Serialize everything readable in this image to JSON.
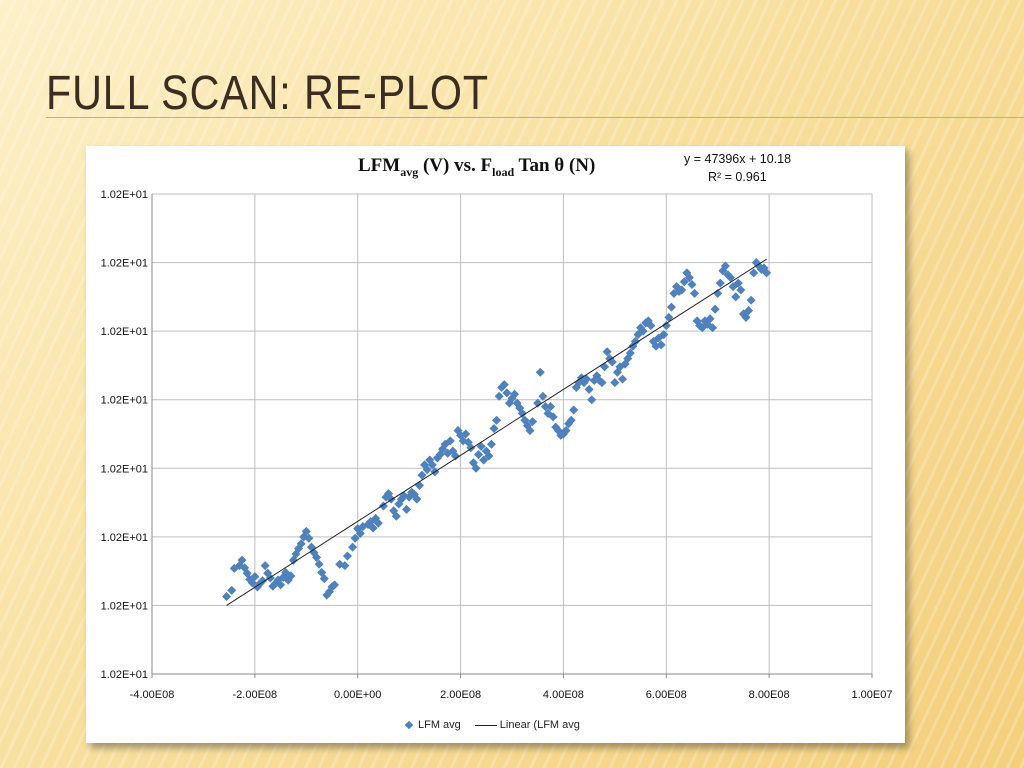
{
  "slide": {
    "title": "FULL SCAN: RE-PLOT"
  },
  "colors": {
    "marker": "#4f81bd",
    "trendline": "#222222",
    "grid": "#bfbfbf"
  },
  "chart_data": {
    "type": "scatter",
    "title": "LFM (V) vs. F Tan θ (N)",
    "title_parts": {
      "a": "LFM",
      "a_sub": "avg",
      "b": " (V) vs. F",
      "b_sub": "load",
      "c": " Tan θ (N)"
    },
    "trendline": {
      "name": "Linear (LFM avg",
      "equation": "y = 47396x + 10.18",
      "r_squared": "R² = 0.961",
      "type": "linear"
    },
    "legend": {
      "placement": "bottom",
      "series_label": "LFM avg",
      "trend_label": "Linear (LFM avg"
    },
    "grid": true,
    "xlim": [
      -4.0,
      10.0
    ],
    "ylim": [
      0,
      7
    ],
    "x_ticks": [
      {
        "value": -4,
        "label": "-4.00E08"
      },
      {
        "value": -2,
        "label": "-2.00E08"
      },
      {
        "value": 0,
        "label": "0.00E+00"
      },
      {
        "value": 2,
        "label": "2.00E08"
      },
      {
        "value": 4,
        "label": "4.00E08"
      },
      {
        "value": 6,
        "label": "6.00E08"
      },
      {
        "value": 8,
        "label": "8.00E08"
      },
      {
        "value": 10,
        "label": "1.00E07"
      }
    ],
    "y_ticks": [
      {
        "value": 0,
        "label": "1.02E+01"
      },
      {
        "value": 1,
        "label": "1.02E+01"
      },
      {
        "value": 2,
        "label": "1.02E+01"
      },
      {
        "value": 3,
        "label": "1.02E+01"
      },
      {
        "value": 4,
        "label": "1.02E+01"
      },
      {
        "value": 5,
        "label": "1.02E+01"
      },
      {
        "value": 6,
        "label": "1.02E+01"
      },
      {
        "value": 7,
        "label": "1.02E+01"
      }
    ],
    "trend_range": {
      "x": [
        -2.55,
        7.95
      ],
      "y": [
        1.0,
        6.05
      ]
    },
    "series": [
      {
        "name": "LFM avg",
        "points": [
          [
            -2.55,
            1.13
          ],
          [
            -2.45,
            1.22
          ],
          [
            -2.4,
            1.54
          ],
          [
            -2.3,
            1.58
          ],
          [
            -2.25,
            1.66
          ],
          [
            -2.2,
            1.55
          ],
          [
            -2.15,
            1.47
          ],
          [
            -2.1,
            1.38
          ],
          [
            -2.05,
            1.33
          ],
          [
            -2.0,
            1.42
          ],
          [
            -1.95,
            1.27
          ],
          [
            -1.9,
            1.32
          ],
          [
            -1.85,
            1.36
          ],
          [
            -1.8,
            1.58
          ],
          [
            -1.75,
            1.47
          ],
          [
            -1.7,
            1.4
          ],
          [
            -1.65,
            1.28
          ],
          [
            -1.6,
            1.32
          ],
          [
            -1.55,
            1.37
          ],
          [
            -1.5,
            1.3
          ],
          [
            -1.45,
            1.41
          ],
          [
            -1.4,
            1.48
          ],
          [
            -1.35,
            1.37
          ],
          [
            -1.3,
            1.43
          ],
          [
            -1.25,
            1.66
          ],
          [
            -1.2,
            1.75
          ],
          [
            -1.15,
            1.83
          ],
          [
            -1.1,
            1.9
          ],
          [
            -1.05,
            2.0
          ],
          [
            -1.0,
            2.08
          ],
          [
            -0.95,
            1.98
          ],
          [
            -0.9,
            1.85
          ],
          [
            -0.85,
            1.77
          ],
          [
            -0.8,
            1.7
          ],
          [
            -0.75,
            1.6
          ],
          [
            -0.7,
            1.48
          ],
          [
            -0.65,
            1.39
          ],
          [
            -0.6,
            1.15
          ],
          [
            -0.55,
            1.2
          ],
          [
            -0.5,
            1.27
          ],
          [
            -0.45,
            1.3
          ],
          [
            -0.35,
            1.6
          ],
          [
            -0.25,
            1.58
          ],
          [
            -0.2,
            1.72
          ],
          [
            -0.1,
            1.85
          ],
          [
            -0.05,
            1.98
          ],
          [
            0.0,
            2.12
          ],
          [
            0.05,
            2.05
          ],
          [
            0.1,
            2.15
          ],
          [
            0.2,
            2.18
          ],
          [
            0.25,
            2.22
          ],
          [
            0.3,
            2.13
          ],
          [
            0.35,
            2.27
          ],
          [
            0.4,
            2.2
          ],
          [
            0.5,
            2.45
          ],
          [
            0.55,
            2.58
          ],
          [
            0.6,
            2.63
          ],
          [
            0.65,
            2.55
          ],
          [
            0.7,
            2.38
          ],
          [
            0.75,
            2.3
          ],
          [
            0.8,
            2.48
          ],
          [
            0.85,
            2.55
          ],
          [
            0.9,
            2.6
          ],
          [
            0.95,
            2.4
          ],
          [
            1.0,
            2.58
          ],
          [
            1.05,
            2.65
          ],
          [
            1.1,
            2.62
          ],
          [
            1.15,
            2.55
          ],
          [
            1.2,
            2.75
          ],
          [
            1.25,
            2.9
          ],
          [
            1.3,
            3.05
          ],
          [
            1.35,
            2.98
          ],
          [
            1.4,
            3.12
          ],
          [
            1.45,
            3.05
          ],
          [
            1.5,
            2.95
          ],
          [
            1.55,
            3.15
          ],
          [
            1.6,
            3.2
          ],
          [
            1.65,
            3.28
          ],
          [
            1.7,
            3.35
          ],
          [
            1.75,
            3.22
          ],
          [
            1.8,
            3.4
          ],
          [
            1.85,
            3.25
          ],
          [
            1.9,
            3.18
          ],
          [
            1.95,
            3.55
          ],
          [
            2.0,
            3.48
          ],
          [
            2.05,
            3.4
          ],
          [
            2.1,
            3.5
          ],
          [
            2.15,
            3.38
          ],
          [
            2.2,
            3.3
          ],
          [
            2.25,
            3.08
          ],
          [
            2.3,
            3.0
          ],
          [
            2.35,
            3.2
          ],
          [
            2.4,
            3.32
          ],
          [
            2.45,
            3.12
          ],
          [
            2.5,
            3.25
          ],
          [
            2.55,
            3.18
          ],
          [
            2.6,
            3.35
          ],
          [
            2.65,
            3.58
          ],
          [
            2.7,
            3.7
          ],
          [
            2.75,
            4.05
          ],
          [
            2.8,
            4.18
          ],
          [
            2.85,
            4.22
          ],
          [
            2.9,
            4.1
          ],
          [
            2.95,
            3.95
          ],
          [
            3.0,
            4.02
          ],
          [
            3.05,
            4.08
          ],
          [
            3.1,
            3.95
          ],
          [
            3.15,
            3.88
          ],
          [
            3.2,
            3.8
          ],
          [
            3.25,
            3.7
          ],
          [
            3.3,
            3.62
          ],
          [
            3.35,
            3.55
          ],
          [
            3.4,
            3.68
          ],
          [
            3.5,
            3.95
          ],
          [
            3.55,
            4.4
          ],
          [
            3.6,
            4.05
          ],
          [
            3.65,
            3.9
          ],
          [
            3.7,
            3.8
          ],
          [
            3.75,
            3.9
          ],
          [
            3.8,
            3.75
          ],
          [
            3.85,
            3.6
          ],
          [
            3.9,
            3.55
          ],
          [
            3.95,
            3.48
          ],
          [
            4.0,
            3.5
          ],
          [
            4.05,
            3.55
          ],
          [
            4.1,
            3.65
          ],
          [
            4.15,
            3.7
          ],
          [
            4.2,
            3.85
          ],
          [
            4.25,
            4.18
          ],
          [
            4.3,
            4.25
          ],
          [
            4.35,
            4.32
          ],
          [
            4.4,
            4.25
          ],
          [
            4.45,
            4.3
          ],
          [
            4.5,
            4.15
          ],
          [
            4.55,
            4.0
          ],
          [
            4.6,
            4.28
          ],
          [
            4.65,
            4.35
          ],
          [
            4.7,
            4.28
          ],
          [
            4.75,
            4.25
          ],
          [
            4.8,
            4.48
          ],
          [
            4.85,
            4.7
          ],
          [
            4.9,
            4.6
          ],
          [
            4.95,
            4.55
          ],
          [
            5.0,
            4.25
          ],
          [
            5.05,
            4.4
          ],
          [
            5.1,
            4.48
          ],
          [
            5.15,
            4.3
          ],
          [
            5.2,
            4.52
          ],
          [
            5.25,
            4.6
          ],
          [
            5.3,
            4.68
          ],
          [
            5.35,
            4.78
          ],
          [
            5.4,
            4.85
          ],
          [
            5.45,
            4.95
          ],
          [
            5.5,
            5.05
          ],
          [
            5.55,
            5.0
          ],
          [
            5.6,
            5.12
          ],
          [
            5.65,
            5.15
          ],
          [
            5.7,
            5.08
          ],
          [
            5.75,
            4.85
          ],
          [
            5.8,
            4.78
          ],
          [
            5.85,
            4.9
          ],
          [
            5.9,
            4.8
          ],
          [
            5.95,
            4.95
          ],
          [
            6.0,
            5.08
          ],
          [
            6.05,
            5.2
          ],
          [
            6.1,
            5.35
          ],
          [
            6.15,
            5.55
          ],
          [
            6.2,
            5.65
          ],
          [
            6.25,
            5.58
          ],
          [
            6.3,
            5.6
          ],
          [
            6.35,
            5.72
          ],
          [
            6.4,
            5.85
          ],
          [
            6.45,
            5.78
          ],
          [
            6.5,
            5.68
          ],
          [
            6.55,
            5.55
          ],
          [
            6.6,
            5.15
          ],
          [
            6.65,
            5.08
          ],
          [
            6.7,
            5.05
          ],
          [
            6.75,
            5.15
          ],
          [
            6.8,
            5.1
          ],
          [
            6.85,
            5.18
          ],
          [
            6.9,
            5.05
          ],
          [
            6.95,
            5.32
          ],
          [
            7.0,
            5.55
          ],
          [
            7.05,
            5.7
          ],
          [
            7.1,
            5.88
          ],
          [
            7.15,
            5.95
          ],
          [
            7.2,
            5.82
          ],
          [
            7.25,
            5.78
          ],
          [
            7.3,
            5.65
          ],
          [
            7.35,
            5.5
          ],
          [
            7.4,
            5.7
          ],
          [
            7.45,
            5.6
          ],
          [
            7.5,
            5.25
          ],
          [
            7.55,
            5.2
          ],
          [
            7.6,
            5.3
          ],
          [
            7.65,
            5.45
          ],
          [
            7.7,
            5.85
          ],
          [
            7.75,
            6.0
          ],
          [
            7.8,
            5.95
          ],
          [
            7.85,
            5.9
          ],
          [
            7.9,
            5.92
          ],
          [
            7.95,
            5.85
          ]
        ]
      }
    ]
  }
}
